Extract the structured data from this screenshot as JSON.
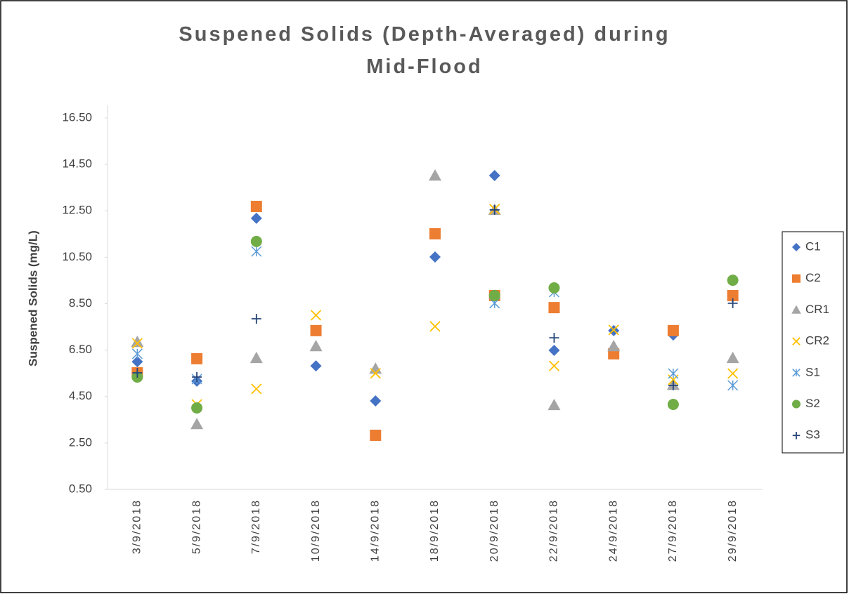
{
  "chart_data": {
    "type": "scatter",
    "title": "Suspened Solids (Depth-Averaged) during Mid-Flood",
    "y_label": "Suspened Solids (mg/L)",
    "categories": [
      "3/9/2018",
      "5/9/2018",
      "7/9/2018",
      "10/9/2018",
      "14/9/2018",
      "18/9/2018",
      "20/9/2018",
      "22/9/2018",
      "24/9/2018",
      "27/9/2018",
      "29/9/2018"
    ],
    "ylim": [
      0.5,
      16.5
    ],
    "yticks": [
      {
        "value": 0.5,
        "label": "0.50"
      },
      {
        "value": 2.5,
        "label": "2.50"
      },
      {
        "value": 4.5,
        "label": "4.50"
      },
      {
        "value": 6.5,
        "label": "6.50"
      },
      {
        "value": 8.5,
        "label": "8.50"
      },
      {
        "value": 10.5,
        "label": "10.50"
      },
      {
        "value": 12.5,
        "label": "12.50"
      },
      {
        "value": 14.5,
        "label": "14.50"
      },
      {
        "value": 16.5,
        "label": "16.50"
      }
    ],
    "legend": "right",
    "series": [
      {
        "name": "C1",
        "color": "#4472c4",
        "marker": "diamond",
        "values": [
          6.0,
          5.16,
          12.18,
          5.82,
          4.31,
          10.51,
          14.02,
          6.49,
          7.34,
          7.15,
          8.8
        ]
      },
      {
        "name": "C2",
        "color": "#ed7d31",
        "marker": "square",
        "values": [
          5.52,
          6.13,
          12.69,
          7.34,
          2.83,
          11.51,
          8.85,
          8.33,
          6.34,
          7.34,
          8.85
        ]
      },
      {
        "name": "CR1",
        "color": "#a5a5a5",
        "marker": "triangle",
        "values": [
          6.85,
          3.31,
          6.16,
          6.67,
          5.7,
          14.02,
          12.54,
          4.13,
          6.67,
          5.0,
          6.16
        ]
      },
      {
        "name": "CR2",
        "color": "#ffc000",
        "marker": "x",
        "values": [
          6.79,
          4.16,
          4.83,
          8.0,
          5.5,
          7.52,
          12.57,
          5.82,
          7.37,
          5.22,
          5.49
        ]
      },
      {
        "name": "S1",
        "color": "#5b9bd5",
        "marker": "star",
        "values": [
          6.34,
          5.25,
          10.75,
          null,
          null,
          null,
          8.52,
          9.0,
          null,
          5.49,
          4.98
        ]
      },
      {
        "name": "S2",
        "color": "#70ad47",
        "marker": "circle",
        "values": [
          5.34,
          4.01,
          11.18,
          null,
          null,
          null,
          8.85,
          9.18,
          null,
          4.16,
          9.51
        ]
      },
      {
        "name": "S3",
        "color": "#264478",
        "marker": "plus",
        "values": [
          5.52,
          5.34,
          7.85,
          null,
          null,
          null,
          12.54,
          7.03,
          null,
          4.98,
          8.52
        ]
      }
    ]
  }
}
